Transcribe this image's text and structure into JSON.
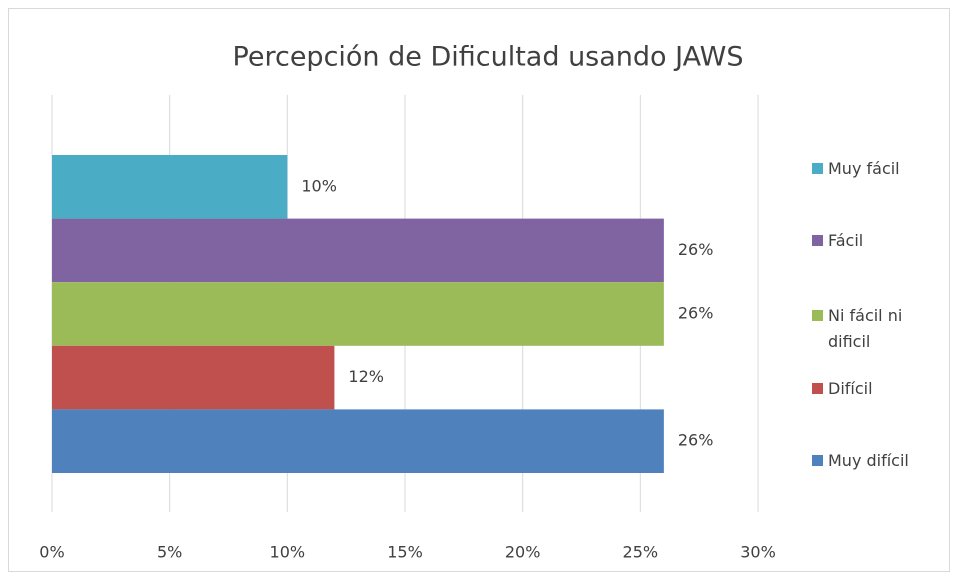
{
  "chart_data": {
    "type": "bar",
    "orientation": "horizontal",
    "title": "Percepción de Dificultad usando JAWS",
    "series": [
      {
        "name": "Muy fácil",
        "color": "#4bacc6",
        "values": [
          10
        ],
        "value_labels": [
          "10%"
        ]
      },
      {
        "name": "Fácil",
        "color": "#8064a2",
        "values": [
          26
        ],
        "value_labels": [
          "26%"
        ]
      },
      {
        "name": "Ni fácil ni dificil",
        "color": "#9bbb59",
        "values": [
          26
        ],
        "value_labels": [
          "26%"
        ]
      },
      {
        "name": "Difícil",
        "color": "#c0504d",
        "values": [
          12
        ],
        "value_labels": [
          "12%"
        ]
      },
      {
        "name": "Muy difícil",
        "color": "#4f81bd",
        "values": [
          26
        ],
        "value_labels": [
          "26%"
        ]
      }
    ],
    "xlim": [
      0,
      30
    ],
    "xticks": [
      {
        "value": 0,
        "label": "0%"
      },
      {
        "value": 5,
        "label": "5%"
      },
      {
        "value": 10,
        "label": "10%"
      },
      {
        "value": 15,
        "label": "15%"
      },
      {
        "value": 20,
        "label": "20%"
      },
      {
        "value": 25,
        "label": "25%"
      },
      {
        "value": 30,
        "label": "30%"
      }
    ],
    "grid": true,
    "legend": "right"
  }
}
